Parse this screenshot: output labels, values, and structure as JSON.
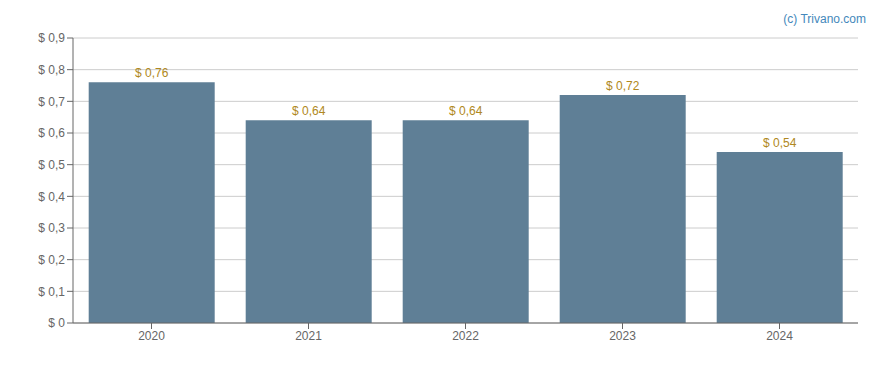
{
  "chart_data": {
    "type": "bar",
    "categories": [
      "2020",
      "2021",
      "2022",
      "2023",
      "2024"
    ],
    "values": [
      0.76,
      0.64,
      0.64,
      0.72,
      0.54
    ],
    "value_labels": [
      "$ 0,76",
      "$ 0,64",
      "$ 0,64",
      "$ 0,72",
      "$ 0,54"
    ],
    "data_labels": true,
    "color": "#5f7f96",
    "ylim": [
      0,
      0.9
    ],
    "yticks": [
      {
        "value": 0.0,
        "label": "$ 0"
      },
      {
        "value": 0.1,
        "label": "$ 0,1"
      },
      {
        "value": 0.2,
        "label": "$ 0,2"
      },
      {
        "value": 0.3,
        "label": "$ 0,3"
      },
      {
        "value": 0.4,
        "label": "$ 0,4"
      },
      {
        "value": 0.5,
        "label": "$ 0,5"
      },
      {
        "value": 0.6,
        "label": "$ 0,6"
      },
      {
        "value": 0.7,
        "label": "$ 0,7"
      },
      {
        "value": 0.8,
        "label": "$ 0,8"
      },
      {
        "value": 0.9,
        "label": "$ 0,9"
      }
    ],
    "grid": true,
    "annotations": [
      "(c) Trivano.com"
    ]
  }
}
